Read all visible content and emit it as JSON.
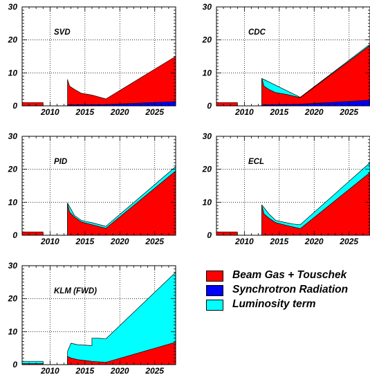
{
  "colors": {
    "beam_gas": "#ff0000",
    "synchrotron": "#0000ff",
    "luminosity": "#00ffff",
    "axis": "#000000",
    "grid": "#000000"
  },
  "axes": {
    "xlim": [
      2006,
      2028
    ],
    "ylim": [
      0,
      30
    ],
    "x_ticks": [
      "2010",
      "2015",
      "2020",
      "2025"
    ],
    "y_ticks": [
      "0",
      "10",
      "20",
      "30"
    ],
    "grid": "dotted"
  },
  "legend": {
    "placement": "bottom-right",
    "items": [
      {
        "label": "Beam Gas + Touschek",
        "color": "#ff0000"
      },
      {
        "label": "Synchrotron Radiation",
        "color": "#0000ff"
      },
      {
        "label": "Luminosity term",
        "color": "#00ffff"
      }
    ]
  },
  "chart_data": [
    {
      "type": "area",
      "title": "SVD",
      "xlabel": "",
      "ylabel": "",
      "xlim": [
        2006,
        2028
      ],
      "ylim": [
        0,
        30
      ],
      "series": [
        {
          "name": "Beam Gas + Touschek",
          "points": [
            [
              2006,
              1.0
            ],
            [
              2009,
              1.0
            ],
            [
              2009,
              0
            ],
            [
              2012.5,
              0
            ],
            [
              2012.5,
              8.0
            ],
            [
              2012.8,
              6.0
            ],
            [
              2013.5,
              5.0
            ],
            [
              2014.5,
              3.8
            ],
            [
              2016,
              3.3
            ],
            [
              2018,
              2.1
            ],
            [
              2028,
              15.0
            ]
          ]
        },
        {
          "name": "Synchrotron Radiation",
          "points": [
            [
              2012.5,
              0.3
            ],
            [
              2018,
              0.4
            ],
            [
              2028,
              1.3
            ]
          ]
        },
        {
          "name": "Luminosity term",
          "points": []
        }
      ]
    },
    {
      "type": "area",
      "title": "CDC",
      "xlabel": "",
      "ylabel": "",
      "xlim": [
        2006,
        2028
      ],
      "ylim": [
        0,
        30
      ],
      "series": [
        {
          "name": "Beam Gas + Touschek",
          "points": [
            [
              2006,
              1.0
            ],
            [
              2009,
              1.0
            ],
            [
              2009,
              0
            ],
            [
              2012.5,
              0
            ],
            [
              2012.5,
              8.3
            ],
            [
              2012.8,
              6.0
            ],
            [
              2013.5,
              5.0
            ],
            [
              2014.5,
              4.0
            ],
            [
              2016,
              3.5
            ],
            [
              2018,
              2.5
            ],
            [
              2028,
              18.3
            ]
          ]
        },
        {
          "name": "Synchrotron Radiation",
          "points": [
            [
              2012.5,
              0.3
            ],
            [
              2018,
              0.5
            ],
            [
              2028,
              1.7
            ]
          ]
        },
        {
          "name": "Luminosity term",
          "points": [
            [
              2012.5,
              8.3
            ],
            [
              2018,
              2.6
            ],
            [
              2028,
              18.7
            ]
          ]
        }
      ]
    },
    {
      "type": "area",
      "title": "PID",
      "xlabel": "",
      "ylabel": "",
      "xlim": [
        2006,
        2028
      ],
      "ylim": [
        0,
        30
      ],
      "series": [
        {
          "name": "Beam Gas + Touschek",
          "points": [
            [
              2006,
              1.0
            ],
            [
              2009,
              1.0
            ],
            [
              2009,
              0
            ],
            [
              2012.5,
              0
            ],
            [
              2012.5,
              9.5
            ],
            [
              2012.8,
              7.0
            ],
            [
              2013.5,
              5.5
            ],
            [
              2014.5,
              4.0
            ],
            [
              2016,
              3.2
            ],
            [
              2018,
              2.1
            ],
            [
              2028,
              19.5
            ]
          ]
        },
        {
          "name": "Synchrotron Radiation",
          "points": []
        },
        {
          "name": "Luminosity term",
          "points": [
            [
              2012.5,
              9.8
            ],
            [
              2013.5,
              6.0
            ],
            [
              2014.5,
              4.5
            ],
            [
              2016,
              3.8
            ],
            [
              2018,
              2.7
            ],
            [
              2028,
              20.8
            ]
          ]
        }
      ]
    },
    {
      "type": "area",
      "title": "ECL",
      "xlabel": "",
      "ylabel": "",
      "xlim": [
        2006,
        2028
      ],
      "ylim": [
        0,
        30
      ],
      "series": [
        {
          "name": "Beam Gas + Touschek",
          "points": [
            [
              2006,
              1.0
            ],
            [
              2009,
              1.0
            ],
            [
              2009,
              0
            ],
            [
              2012.5,
              0
            ],
            [
              2012.5,
              9.0
            ],
            [
              2012.8,
              6.5
            ],
            [
              2013.5,
              5.2
            ],
            [
              2014.5,
              3.8
            ],
            [
              2016,
              3.0
            ],
            [
              2018,
              2.0
            ],
            [
              2028,
              19.0
            ]
          ]
        },
        {
          "name": "Synchrotron Radiation",
          "points": []
        },
        {
          "name": "Luminosity term",
          "points": [
            [
              2012.5,
              9.2
            ],
            [
              2013.5,
              6.5
            ],
            [
              2014.5,
              4.5
            ],
            [
              2016,
              3.8
            ],
            [
              2017,
              3.4
            ],
            [
              2018,
              3.2
            ],
            [
              2028,
              22.0
            ]
          ]
        }
      ]
    },
    {
      "type": "area",
      "title": "KLM (FWD)",
      "xlabel": "",
      "ylabel": "",
      "xlim": [
        2006,
        2028
      ],
      "ylim": [
        0,
        30
      ],
      "series": [
        {
          "name": "Beam Gas + Touschek",
          "points": [
            [
              2006,
              0.3
            ],
            [
              2009,
              0.3
            ],
            [
              2009,
              0
            ],
            [
              2012.5,
              0
            ],
            [
              2012.5,
              2.5
            ],
            [
              2013,
              2.0
            ],
            [
              2014,
              1.5
            ],
            [
              2016,
              1.0
            ],
            [
              2018,
              0.7
            ],
            [
              2028,
              6.8
            ]
          ]
        },
        {
          "name": "Synchrotron Radiation",
          "points": []
        },
        {
          "name": "Luminosity term",
          "points": [
            [
              2006,
              1.0
            ],
            [
              2009,
              1.0
            ],
            [
              2009,
              0
            ],
            [
              2012.5,
              0
            ],
            [
              2012.5,
              4.0
            ],
            [
              2013,
              6.5
            ],
            [
              2014,
              6.0
            ],
            [
              2016,
              5.8
            ],
            [
              2016,
              8.0
            ],
            [
              2017,
              8.0
            ],
            [
              2018,
              7.8
            ],
            [
              2028,
              28.0
            ]
          ]
        }
      ]
    }
  ]
}
